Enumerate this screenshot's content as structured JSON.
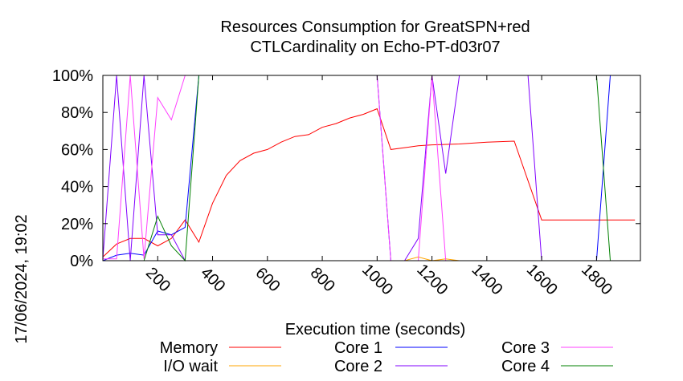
{
  "chart_data": {
    "type": "line",
    "title": "Resources Consumption for GreatSPN+red",
    "subtitle": "CTLCardinality on Echo-PT-d03r07",
    "xlabel": "Execution time (seconds)",
    "ylabel": "",
    "xlim": [
      0,
      1960
    ],
    "ylim": [
      0,
      100
    ],
    "xticks": [
      "200",
      "400",
      "600",
      "800",
      "1000",
      "1200",
      "1400",
      "1600",
      "1800"
    ],
    "yticks": [
      "0%",
      "20%",
      "40%",
      "60%",
      "80%",
      "100%"
    ],
    "grid": false,
    "legend_position": "bottom",
    "series": [
      {
        "name": "Memory",
        "color": "#ff0000",
        "points": [
          [
            0,
            2
          ],
          [
            50,
            9
          ],
          [
            100,
            12
          ],
          [
            150,
            12
          ],
          [
            200,
            8
          ],
          [
            250,
            12
          ],
          [
            300,
            22
          ],
          [
            350,
            10
          ],
          [
            400,
            31
          ],
          [
            450,
            46
          ],
          [
            500,
            54
          ],
          [
            550,
            58
          ],
          [
            600,
            60
          ],
          [
            650,
            64
          ],
          [
            700,
            67
          ],
          [
            750,
            68
          ],
          [
            800,
            72
          ],
          [
            850,
            74
          ],
          [
            900,
            77
          ],
          [
            950,
            79
          ],
          [
            1000,
            82
          ],
          [
            1050,
            60
          ],
          [
            1100,
            61
          ],
          [
            1150,
            62
          ],
          [
            1200,
            62.5
          ],
          [
            1300,
            63
          ],
          [
            1400,
            64
          ],
          [
            1500,
            64.5
          ],
          [
            1600,
            22
          ],
          [
            1700,
            22
          ],
          [
            1800,
            22
          ],
          [
            1940,
            22
          ]
        ]
      },
      {
        "name": "I/O wait",
        "color": "#ffa500",
        "points": [
          [
            0,
            0
          ],
          [
            1050,
            0
          ],
          [
            1100,
            0
          ],
          [
            1150,
            2
          ],
          [
            1200,
            0
          ],
          [
            1250,
            1
          ],
          [
            1300,
            0
          ],
          [
            1940,
            0
          ]
        ]
      },
      {
        "name": "Core 1",
        "color": "#0000ff",
        "points": [
          [
            0,
            0
          ],
          [
            50,
            3
          ],
          [
            100,
            4
          ],
          [
            150,
            3
          ],
          [
            200,
            16
          ],
          [
            250,
            14
          ],
          [
            300,
            18
          ],
          [
            350,
            100
          ],
          [
            1000,
            100
          ],
          [
            1050,
            0
          ],
          [
            1800,
            0
          ],
          [
            1850,
            100
          ],
          [
            1940,
            100
          ]
        ]
      },
      {
        "name": "Core 2",
        "color": "#8000ff",
        "points": [
          [
            0,
            1
          ],
          [
            50,
            100
          ],
          [
            100,
            0
          ],
          [
            150,
            100
          ],
          [
            200,
            14
          ],
          [
            250,
            14
          ],
          [
            300,
            0
          ],
          [
            350,
            0
          ],
          [
            1000,
            0
          ],
          [
            1100,
            0
          ],
          [
            1150,
            12
          ],
          [
            1200,
            100
          ],
          [
            1250,
            47
          ],
          [
            1300,
            100
          ],
          [
            1550,
            100
          ],
          [
            1600,
            0
          ],
          [
            1940,
            0
          ]
        ]
      },
      {
        "name": "Core 3",
        "color": "#ff40ff",
        "points": [
          [
            0,
            1
          ],
          [
            50,
            1
          ],
          [
            100,
            100
          ],
          [
            150,
            1
          ],
          [
            200,
            88
          ],
          [
            250,
            76
          ],
          [
            300,
            100
          ],
          [
            350,
            100
          ],
          [
            1000,
            100
          ],
          [
            1050,
            0
          ],
          [
            1150,
            0
          ],
          [
            1200,
            100
          ],
          [
            1250,
            0
          ],
          [
            1300,
            0
          ],
          [
            1940,
            0
          ]
        ]
      },
      {
        "name": "Core 4",
        "color": "#008000",
        "points": [
          [
            0,
            0
          ],
          [
            50,
            0
          ],
          [
            100,
            0
          ],
          [
            150,
            0
          ],
          [
            200,
            24
          ],
          [
            250,
            8
          ],
          [
            300,
            0
          ],
          [
            350,
            100
          ],
          [
            1000,
            100
          ],
          [
            1800,
            100
          ],
          [
            1850,
            0
          ],
          [
            1940,
            0
          ]
        ]
      }
    ]
  },
  "timestamp": "17/06/2024, 19:02"
}
